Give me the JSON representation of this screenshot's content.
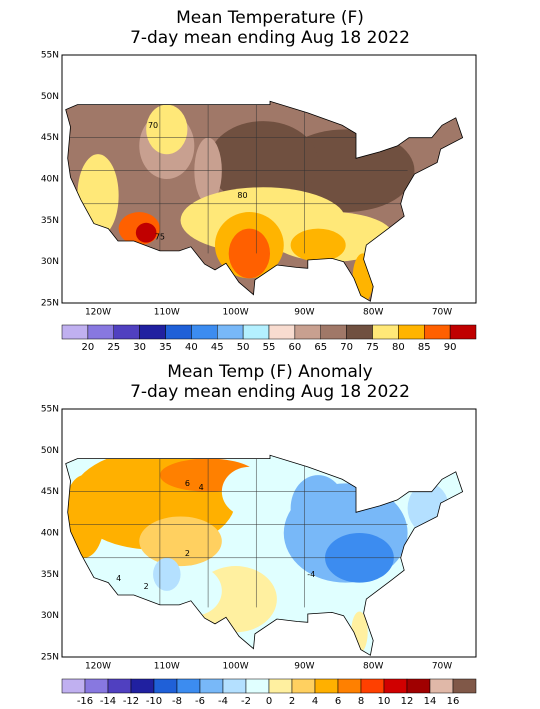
{
  "panels": [
    {
      "title": [
        "Mean Temperature (F)",
        "7-day mean ending Aug 18 2022"
      ],
      "lat_labels": [
        "55N",
        "50N",
        "45N",
        "40N",
        "35N",
        "30N",
        "25N"
      ],
      "lon_labels": [
        "120W",
        "110W",
        "100W",
        "90W",
        "80W",
        "70W"
      ],
      "contour_labels": [
        "70",
        "80",
        "75"
      ],
      "colorbar": {
        "colors": [
          "#c0b0f0",
          "#8878e0",
          "#5040c0",
          "#2020a0",
          "#1f60d8",
          "#3c8cf0",
          "#78b8f8",
          "#b4f0ff",
          "#f8dcd0",
          "#c8a090",
          "#a07868",
          "#705040",
          "#ffe878",
          "#ffb400",
          "#ff6000",
          "#c00000"
        ],
        "labels": [
          20,
          25,
          30,
          35,
          40,
          45,
          50,
          55,
          60,
          65,
          70,
          75,
          80,
          85,
          90
        ]
      }
    },
    {
      "title": [
        "Mean Temp (F) Anomaly",
        "7-day mean ending Aug 18 2022"
      ],
      "lat_labels": [
        "55N",
        "50N",
        "45N",
        "40N",
        "35N",
        "30N",
        "25N"
      ],
      "lon_labels": [
        "120W",
        "110W",
        "100W",
        "90W",
        "80W",
        "70W"
      ],
      "contour_labels": [
        "6",
        "4",
        "2",
        "-4",
        "2",
        "4"
      ],
      "colorbar": {
        "colors": [
          "#c0b0f0",
          "#8878e0",
          "#5040c0",
          "#2020a0",
          "#1f60d8",
          "#3c8cf0",
          "#78b8f8",
          "#b4e0ff",
          "#e0ffff",
          "#fff0a0",
          "#ffd060",
          "#ffb000",
          "#ff8000",
          "#ff4000",
          "#d00000",
          "#a00000",
          "#e0b8a8",
          "#805848"
        ],
        "labels": [
          -16,
          -14,
          -12,
          -10,
          -8,
          -6,
          -4,
          -2,
          0,
          2,
          4,
          6,
          8,
          10,
          12,
          14,
          16
        ]
      }
    }
  ]
}
